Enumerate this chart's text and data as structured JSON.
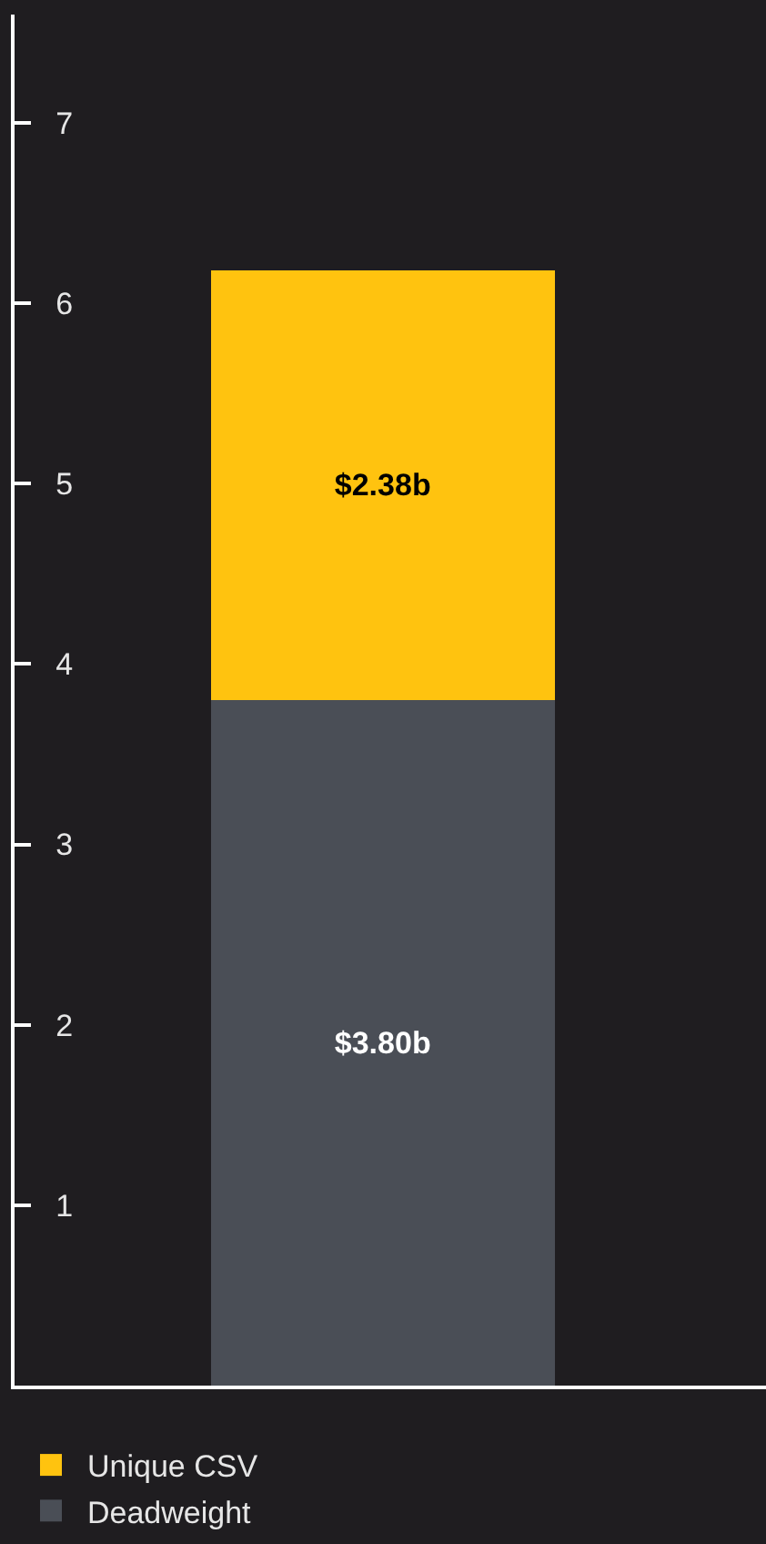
{
  "chart_data": {
    "type": "bar",
    "stacked": true,
    "categories": [
      null
    ],
    "series": [
      {
        "name": "Deadweight",
        "color": "#4a4e56",
        "values": [
          3.8
        ],
        "value_labels": [
          "$3.80b"
        ]
      },
      {
        "name": "Unique CSV",
        "color": "#ffc30f",
        "values": [
          2.38
        ],
        "value_labels": [
          "$2.38b"
        ]
      }
    ],
    "ylim": [
      0,
      7.6
    ],
    "yticks": [
      1,
      2,
      3,
      4,
      5,
      6,
      7
    ],
    "grid": false,
    "legend": "bottom"
  }
}
